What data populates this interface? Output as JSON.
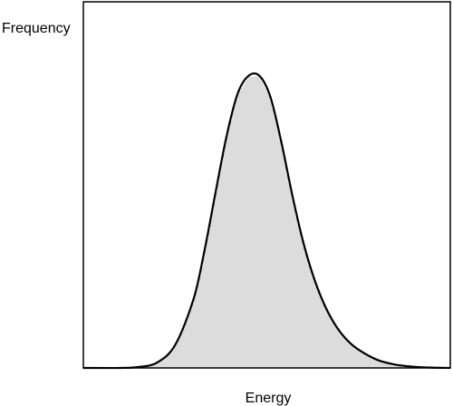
{
  "chart_data": {
    "type": "area",
    "title": "",
    "xlabel": "Energy",
    "ylabel": "Frequency",
    "show_ticks": false,
    "grid": false,
    "fill": "vertical-hatch",
    "colors": {
      "curve": "#000000",
      "hatch": "#8a8a8a",
      "frame": "#000000"
    },
    "xlim": [
      0,
      10
    ],
    "ylim": [
      0,
      1.0
    ],
    "series": [
      {
        "x": [
          0.0,
          1.0,
          1.5,
          2.0,
          2.5,
          3.0,
          3.3,
          3.6,
          3.9,
          4.2,
          4.5,
          4.8,
          5.1,
          5.4,
          5.7,
          6.0,
          6.3,
          6.6,
          6.9,
          7.2,
          7.5,
          8.0,
          8.5,
          9.0,
          9.5,
          10.0
        ],
        "y": [
          0.0,
          0.0,
          0.003,
          0.017,
          0.075,
          0.225,
          0.385,
          0.575,
          0.76,
          0.9,
          0.96,
          0.96,
          0.89,
          0.74,
          0.565,
          0.41,
          0.29,
          0.2,
          0.135,
          0.09,
          0.06,
          0.027,
          0.011,
          0.004,
          0.001,
          0.0
        ]
      }
    ]
  }
}
